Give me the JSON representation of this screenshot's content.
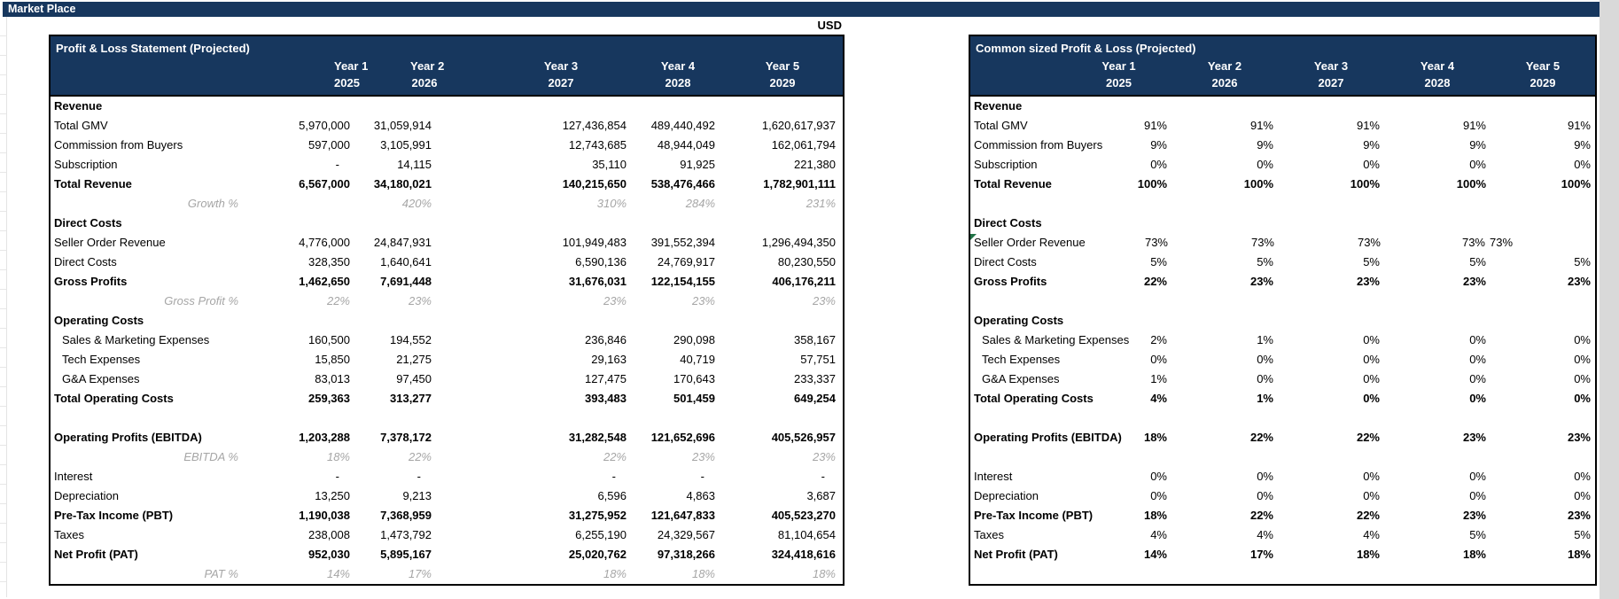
{
  "window": {
    "title_bar": "Market Place",
    "currency_label": "USD"
  },
  "colors": {
    "header_navy": "#17375E",
    "pct_gray": "#A6A6A6",
    "corner_marker_green": "#217346",
    "table_border": "#000000",
    "right_strip_gray": "#D9D9D9"
  },
  "years": {
    "labels": [
      "Year 1",
      "Year 2",
      "Year 3",
      "Year 4",
      "Year 5"
    ],
    "values": [
      "2025",
      "2026",
      "2027",
      "2028",
      "2029"
    ]
  },
  "left_table": {
    "title": "Profit & Loss Statement (Projected)",
    "rows": [
      {
        "label": "Revenue",
        "style": "section",
        "values": [
          "",
          "",
          "",
          "",
          ""
        ]
      },
      {
        "label": "Total GMV",
        "style": "item",
        "values": [
          "5,970,000",
          "31,059,914",
          "127,436,854",
          "489,440,492",
          "1,620,617,937"
        ]
      },
      {
        "label": "Commission from Buyers",
        "style": "item",
        "values": [
          "597,000",
          "3,105,991",
          "12,743,685",
          "48,944,049",
          "162,061,794"
        ]
      },
      {
        "label": "Subscription",
        "style": "item",
        "values": [
          "-",
          "14,115",
          "35,110",
          "91,925",
          "221,380"
        ]
      },
      {
        "label": "Total Revenue",
        "style": "total",
        "values": [
          "6,567,000",
          "34,180,021",
          "140,215,650",
          "538,476,466",
          "1,782,901,111"
        ]
      },
      {
        "label": "Growth %",
        "style": "pct",
        "values": [
          "",
          "420%",
          "310%",
          "284%",
          "231%"
        ]
      },
      {
        "label": "Direct Costs",
        "style": "section",
        "values": [
          "",
          "",
          "",
          "",
          ""
        ]
      },
      {
        "label": "Seller Order Revenue",
        "style": "item",
        "values": [
          "4,776,000",
          "24,847,931",
          "101,949,483",
          "391,552,394",
          "1,296,494,350"
        ]
      },
      {
        "label": "Direct Costs",
        "style": "item",
        "values": [
          "328,350",
          "1,640,641",
          "6,590,136",
          "24,769,917",
          "80,230,550"
        ]
      },
      {
        "label": "Gross Profits",
        "style": "total",
        "values": [
          "1,462,650",
          "7,691,448",
          "31,676,031",
          "122,154,155",
          "406,176,211"
        ]
      },
      {
        "label": "Gross Profit %",
        "style": "pct",
        "values": [
          "22%",
          "23%",
          "23%",
          "23%",
          "23%"
        ]
      },
      {
        "label": "Operating Costs",
        "style": "section",
        "values": [
          "",
          "",
          "",
          "",
          ""
        ]
      },
      {
        "label": "Sales & Marketing Expenses",
        "style": "item-indent",
        "values": [
          "160,500",
          "194,552",
          "236,846",
          "290,098",
          "358,167"
        ]
      },
      {
        "label": "Tech Expenses",
        "style": "item-indent",
        "values": [
          "15,850",
          "21,275",
          "29,163",
          "40,719",
          "57,751"
        ]
      },
      {
        "label": "G&A Expenses",
        "style": "item-indent",
        "values": [
          "83,013",
          "97,450",
          "127,475",
          "170,643",
          "233,337"
        ]
      },
      {
        "label": "Total Operating Costs",
        "style": "total",
        "values": [
          "259,363",
          "313,277",
          "393,483",
          "501,459",
          "649,254"
        ]
      },
      {
        "label": "",
        "style": "blank",
        "values": [
          "",
          "",
          "",
          "",
          ""
        ]
      },
      {
        "label": "Operating Profits (EBITDA)",
        "style": "total",
        "values": [
          "1,203,288",
          "7,378,172",
          "31,282,548",
          "121,652,696",
          "405,526,957"
        ]
      },
      {
        "label": "EBITDA %",
        "style": "pct",
        "values": [
          "18%",
          "22%",
          "22%",
          "23%",
          "23%"
        ]
      },
      {
        "label": "Interest",
        "style": "item",
        "values": [
          "-",
          "-",
          "-",
          "-",
          "-"
        ]
      },
      {
        "label": "Depreciation",
        "style": "item",
        "values": [
          "13,250",
          "9,213",
          "6,596",
          "4,863",
          "3,687"
        ]
      },
      {
        "label": "Pre-Tax Income (PBT)",
        "style": "total",
        "values": [
          "1,190,038",
          "7,368,959",
          "31,275,952",
          "121,647,833",
          "405,523,270"
        ]
      },
      {
        "label": "Taxes",
        "style": "item",
        "values": [
          "238,008",
          "1,473,792",
          "6,255,190",
          "24,329,567",
          "81,104,654"
        ]
      },
      {
        "label": "Net Profit (PAT)",
        "style": "total",
        "values": [
          "952,030",
          "5,895,167",
          "25,020,762",
          "97,318,266",
          "324,418,616"
        ]
      },
      {
        "label": "PAT %",
        "style": "pct",
        "values": [
          "14%",
          "17%",
          "18%",
          "18%",
          "18%"
        ]
      }
    ]
  },
  "right_table": {
    "title": "Common sized Profit & Loss (Projected)",
    "rows": [
      {
        "label": "Revenue",
        "style": "section",
        "values": [
          "",
          "",
          "",
          "",
          ""
        ]
      },
      {
        "label": "Total GMV",
        "style": "item",
        "values": [
          "91%",
          "91%",
          "91%",
          "91%",
          "91%"
        ]
      },
      {
        "label": "Commission from Buyers",
        "style": "item",
        "values": [
          "9%",
          "9%",
          "9%",
          "9%",
          "9%"
        ]
      },
      {
        "label": "Subscription",
        "style": "item",
        "values": [
          "0%",
          "0%",
          "0%",
          "0%",
          "0%"
        ]
      },
      {
        "label": "Total Revenue",
        "style": "total",
        "values": [
          "100%",
          "100%",
          "100%",
          "100%",
          "100%"
        ]
      },
      {
        "label": "",
        "style": "blank",
        "values": [
          "",
          "",
          "",
          "",
          ""
        ]
      },
      {
        "label": "Direct Costs",
        "style": "section",
        "values": [
          "",
          "",
          "",
          "",
          ""
        ]
      },
      {
        "label": "Seller Order Revenue",
        "style": "item",
        "marker": true,
        "values": [
          "73%",
          "73%",
          "73%",
          "73%",
          "73%"
        ]
      },
      {
        "label": "Direct Costs",
        "style": "item",
        "values": [
          "5%",
          "5%",
          "5%",
          "5%",
          "5%"
        ]
      },
      {
        "label": "Gross Profits",
        "style": "total",
        "values": [
          "22%",
          "23%",
          "23%",
          "23%",
          "23%"
        ]
      },
      {
        "label": "",
        "style": "blank",
        "values": [
          "",
          "",
          "",
          "",
          ""
        ]
      },
      {
        "label": "Operating Costs",
        "style": "section",
        "values": [
          "",
          "",
          "",
          "",
          ""
        ]
      },
      {
        "label": "Sales & Marketing Expenses",
        "style": "item-indent",
        "values": [
          "2%",
          "1%",
          "0%",
          "0%",
          "0%"
        ]
      },
      {
        "label": "Tech Expenses",
        "style": "item-indent",
        "values": [
          "0%",
          "0%",
          "0%",
          "0%",
          "0%"
        ]
      },
      {
        "label": "G&A Expenses",
        "style": "item-indent",
        "values": [
          "1%",
          "0%",
          "0%",
          "0%",
          "0%"
        ]
      },
      {
        "label": "Total Operating Costs",
        "style": "total",
        "values": [
          "4%",
          "1%",
          "0%",
          "0%",
          "0%"
        ]
      },
      {
        "label": "",
        "style": "blank",
        "values": [
          "",
          "",
          "",
          "",
          ""
        ]
      },
      {
        "label": "Operating Profits (EBITDA)",
        "style": "total",
        "values": [
          "18%",
          "22%",
          "22%",
          "23%",
          "23%"
        ]
      },
      {
        "label": "",
        "style": "blank",
        "values": [
          "",
          "",
          "",
          "",
          ""
        ]
      },
      {
        "label": "Interest",
        "style": "item",
        "values": [
          "0%",
          "0%",
          "0%",
          "0%",
          "0%"
        ]
      },
      {
        "label": "Depreciation",
        "style": "item",
        "values": [
          "0%",
          "0%",
          "0%",
          "0%",
          "0%"
        ]
      },
      {
        "label": "Pre-Tax Income (PBT)",
        "style": "total",
        "values": [
          "18%",
          "22%",
          "22%",
          "23%",
          "23%"
        ]
      },
      {
        "label": "Taxes",
        "style": "item",
        "values": [
          "4%",
          "4%",
          "4%",
          "5%",
          "5%"
        ]
      },
      {
        "label": "Net Profit (PAT)",
        "style": "total",
        "values": [
          "14%",
          "17%",
          "18%",
          "18%",
          "18%"
        ]
      },
      {
        "label": "",
        "style": "blank",
        "values": [
          "",
          "",
          "",
          "",
          ""
        ]
      }
    ]
  }
}
